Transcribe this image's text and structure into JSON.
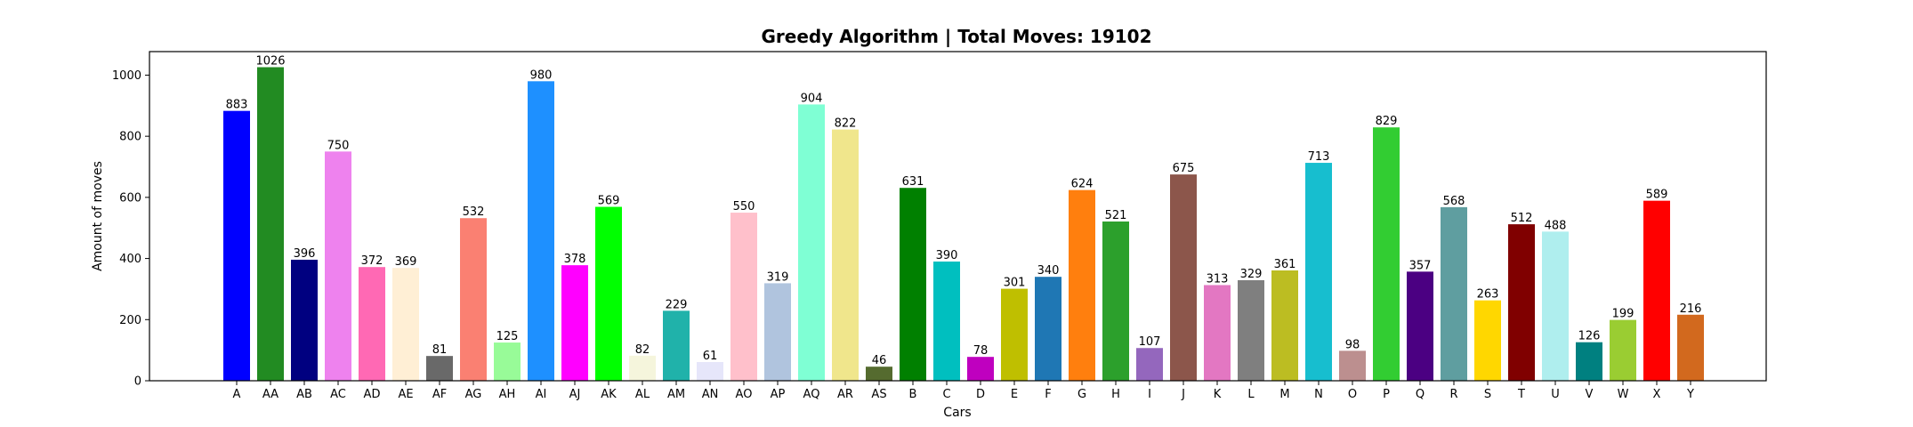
{
  "chart_data": {
    "type": "bar",
    "title": "Greedy Algorithm | Total Moves: 19102",
    "xlabel": "Cars",
    "ylabel": "Amount of moves",
    "ylim": [
      0,
      1077
    ],
    "yticks": [
      0,
      200,
      400,
      600,
      800,
      1000
    ],
    "grid": false,
    "categories": [
      "A",
      "AA",
      "AB",
      "AC",
      "AD",
      "AE",
      "AF",
      "AG",
      "AH",
      "AI",
      "AJ",
      "AK",
      "AL",
      "AM",
      "AN",
      "AO",
      "AP",
      "AQ",
      "AR",
      "AS",
      "B",
      "C",
      "D",
      "E",
      "F",
      "G",
      "H",
      "I",
      "J",
      "K",
      "L",
      "M",
      "N",
      "O",
      "P",
      "Q",
      "R",
      "S",
      "T",
      "U",
      "V",
      "W",
      "X",
      "Y"
    ],
    "values": [
      883,
      1026,
      396,
      750,
      372,
      369,
      81,
      532,
      125,
      980,
      378,
      569,
      82,
      229,
      61,
      550,
      319,
      904,
      822,
      46,
      631,
      390,
      78,
      301,
      340,
      624,
      521,
      107,
      675,
      313,
      329,
      361,
      713,
      98,
      829,
      357,
      568,
      263,
      512,
      488,
      126,
      199,
      589,
      216
    ],
    "colors": [
      "#0000ff",
      "#228b22",
      "#000080",
      "#ee82ee",
      "#ff69b4",
      "#ffefd5",
      "#696969",
      "#fa8072",
      "#98fb98",
      "#1e90ff",
      "#ff00ff",
      "#00ff00",
      "#f5f5dc",
      "#20b2aa",
      "#e6e6fa",
      "#ffc0cb",
      "#b0c4de",
      "#7fffd4",
      "#f0e68c",
      "#556b2f",
      "#008000",
      "#00bfbf",
      "#bf00bf",
      "#bfbf00",
      "#1f77b4",
      "#ff7f0e",
      "#2ca02c",
      "#9467bd",
      "#8c564b",
      "#e377c2",
      "#7f7f7f",
      "#bcbd22",
      "#17becf",
      "#bc8f8f",
      "#32cd32",
      "#4b0082",
      "#5f9ea0",
      "#ffd700",
      "#800000",
      "#afeeee",
      "#008080",
      "#9acd32",
      "#ff0000",
      "#d2691e"
    ]
  }
}
